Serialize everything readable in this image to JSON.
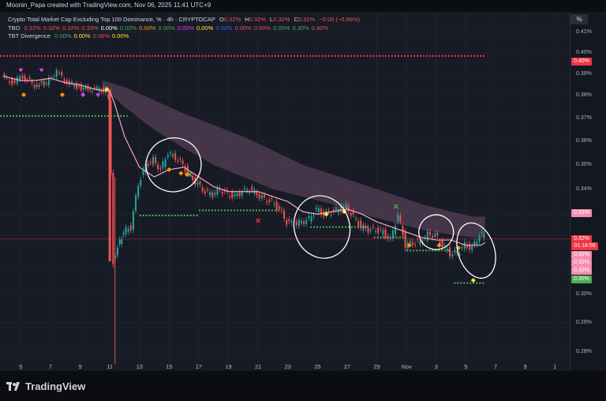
{
  "header": {
    "credit": "Moonin_Papa created with TradingView.com, Nov 06, 2025 11:41 UTC+9",
    "unit_button": "%"
  },
  "legend": {
    "symbol": {
      "title": "Crypto Total Market Cap Excluding Top 100 Dominance, % · 4h · CRYPTOCAP",
      "o_label": "O",
      "o": "0.32%",
      "h_label": "H",
      "h": "0.32%",
      "l_label": "L",
      "l": "0.32%",
      "c_label": "C",
      "c": "0.32%",
      "change": "−0.00 (−0.66%)"
    },
    "tbo": {
      "name": "TBO",
      "values": [
        "0.32%",
        "0.32%",
        "0.32%",
        "0.33%",
        "0.00%",
        "0.00%",
        "0.00%",
        "0.00%",
        "0.00%",
        "0.00%",
        "0.00%",
        "0.00%",
        "0.00%",
        "0.00%",
        "0.30%",
        "0.40%"
      ],
      "colors": [
        "#ef5350",
        "#ef5350",
        "#ef5350",
        "#ef5350",
        "#ffffff",
        "#4caf50",
        "#ff9800",
        "#4caf50",
        "#e040fb",
        "#ffeb3b",
        "#2962ff",
        "#ef5350",
        "#ef5350",
        "#4caf50",
        "#4caf50",
        "#ef5350"
      ]
    },
    "tbt": {
      "name": "TBT Divergence",
      "values": [
        "0.00%",
        "0.00%",
        "0.00%",
        "0.00%"
      ],
      "colors": [
        "#4caf50",
        "#ffeb3b",
        "#ef5350",
        "#ffeb3b"
      ]
    }
  },
  "price_tags": [
    {
      "text": "0.40%",
      "bg": "#f23645"
    },
    {
      "text": "0.33%",
      "bg": "#f48fb1"
    },
    {
      "text": "0.32%",
      "bg": "#f23645"
    },
    {
      "text": "01:18:58",
      "bg": "#f23645"
    },
    {
      "text": "0.32%",
      "bg": "#f48fb1"
    },
    {
      "text": "0.32%",
      "bg": "#f48fb1"
    },
    {
      "text": "0.32%",
      "bg": "#f48fb1"
    },
    {
      "text": "0.30%",
      "bg": "#4caf50"
    }
  ],
  "footer": {
    "logo_text": "TradingView"
  },
  "chart_data": {
    "type": "candlestick",
    "x_tick_labels": [
      "5",
      "7",
      "9",
      "11",
      "13",
      "15",
      "17",
      "19",
      "21",
      "23",
      "25",
      "27",
      "29",
      "Nov",
      "3",
      "5",
      "7",
      "9",
      "1"
    ],
    "y_tick_labels": [
      "0.41%",
      "0.40%",
      "0.39%",
      "0.38%",
      "0.37%",
      "0.36%",
      "0.35%",
      "0.34%",
      "0.33%",
      "0.32%",
      "0.31%",
      "0.30%",
      "0.29%",
      "0.28%"
    ],
    "y_ticks": [
      0.41,
      0.4,
      0.39,
      0.38,
      0.37,
      0.36,
      0.35,
      0.34,
      0.33,
      0.32,
      0.31,
      0.3,
      0.29,
      0.28
    ],
    "ylim": [
      0.274,
      0.42
    ],
    "x_days": [
      5,
      7,
      9,
      11,
      13,
      15,
      17,
      19,
      21,
      23,
      25,
      27,
      29,
      31,
      33,
      35,
      37,
      39,
      41
    ],
    "xlim": [
      3.6,
      42.0
    ],
    "log_scale": true,
    "close_series": {
      "x": [
        3.8,
        4.5,
        5.2,
        6.0,
        6.8,
        7.5,
        8.2,
        9.0,
        9.6,
        10.2,
        10.8,
        11.0,
        11.15,
        11.3,
        11.6,
        12.0,
        12.5,
        13.0,
        13.5,
        14.0,
        14.5,
        15.0,
        15.5,
        16.0,
        16.5,
        17.0,
        17.5,
        18.0,
        18.5,
        19.0,
        19.5,
        20.0,
        20.5,
        21.0,
        21.5,
        22.0,
        22.5,
        23.0,
        23.5,
        24.0,
        24.5,
        25.0,
        25.5,
        26.0,
        26.5,
        27.0,
        27.5,
        28.0,
        28.5,
        29.0,
        29.5,
        30.0,
        30.5,
        31.0,
        31.5,
        32.0,
        32.5,
        33.0,
        33.5,
        34.0,
        34.5,
        35.0,
        35.5,
        36.0,
        36.3
      ],
      "y": [
        0.389,
        0.386,
        0.389,
        0.385,
        0.386,
        0.391,
        0.386,
        0.384,
        0.383,
        0.383,
        0.382,
        0.378,
        0.346,
        0.312,
        0.318,
        0.323,
        0.325,
        0.342,
        0.35,
        0.352,
        0.348,
        0.355,
        0.353,
        0.35,
        0.345,
        0.342,
        0.339,
        0.338,
        0.34,
        0.338,
        0.337,
        0.339,
        0.34,
        0.338,
        0.336,
        0.335,
        0.332,
        0.327,
        0.326,
        0.327,
        0.328,
        0.332,
        0.33,
        0.331,
        0.332,
        0.333,
        0.329,
        0.325,
        0.324,
        0.324,
        0.323,
        0.32,
        0.33,
        0.318,
        0.319,
        0.319,
        0.322,
        0.322,
        0.318,
        0.315,
        0.315,
        0.318,
        0.317,
        0.322,
        0.322
      ]
    },
    "spike_low": {
      "x": 11.35,
      "y": 0.276
    },
    "ema_line": {
      "x": [
        3.8,
        5,
        6,
        7,
        8,
        9,
        10,
        11,
        11.3,
        12,
        13,
        14,
        15,
        16,
        17,
        18,
        19,
        20,
        21,
        22,
        23,
        24,
        25,
        26,
        27,
        28,
        29,
        30,
        31,
        32,
        33,
        34,
        35,
        36,
        36.3
      ],
      "y": [
        0.389,
        0.387,
        0.387,
        0.388,
        0.386,
        0.385,
        0.383,
        0.382,
        0.377,
        0.362,
        0.349,
        0.345,
        0.348,
        0.349,
        0.345,
        0.341,
        0.339,
        0.339,
        0.339,
        0.337,
        0.335,
        0.331,
        0.33,
        0.331,
        0.332,
        0.33,
        0.327,
        0.325,
        0.323,
        0.321,
        0.32,
        0.32,
        0.318,
        0.318,
        0.319
      ]
    },
    "cloud": {
      "x": [
        10.5,
        12,
        14,
        16,
        18,
        20,
        22,
        24,
        26,
        28,
        30,
        32,
        34,
        35.5,
        36.3
      ],
      "upper": [
        0.387,
        0.384,
        0.378,
        0.372,
        0.367,
        0.362,
        0.356,
        0.35,
        0.346,
        0.342,
        0.338,
        0.334,
        0.331,
        0.329,
        0.329
      ],
      "lower": [
        0.384,
        0.375,
        0.365,
        0.357,
        0.35,
        0.345,
        0.34,
        0.337,
        0.334,
        0.33,
        0.327,
        0.324,
        0.322,
        0.321,
        0.321
      ]
    },
    "levels": [
      {
        "y": 0.3985,
        "x0": 3.6,
        "x1": 36.3,
        "color": "#f23645"
      },
      {
        "y": 0.371,
        "x0": 3.6,
        "x1": 12.2,
        "color": "#4caf50"
      },
      {
        "y": 0.3295,
        "x0": 13.0,
        "x1": 17.0,
        "color": "#4caf50"
      },
      {
        "y": 0.3315,
        "x0": 17.0,
        "x1": 22.5,
        "color": "#4caf50"
      },
      {
        "y": 0.325,
        "x0": 24.5,
        "x1": 28.5,
        "color": "#4caf50"
      },
      {
        "y": 0.321,
        "x0": 28.8,
        "x1": 31.0,
        "color": "#4caf50"
      },
      {
        "y": 0.316,
        "x0": 31.0,
        "x1": 34.0,
        "color": "#4caf50"
      },
      {
        "y": 0.304,
        "x0": 34.2,
        "x1": 36.3,
        "color": "#4caf50"
      }
    ],
    "current_price_line": 0.3205,
    "markers": [
      {
        "x": 5.0,
        "y": 0.3915,
        "color": "#e040fb",
        "shape": "tri"
      },
      {
        "x": 6.4,
        "y": 0.3915,
        "color": "#e040fb",
        "shape": "tri"
      },
      {
        "x": 5.2,
        "y": 0.3805,
        "color": "#ff9800",
        "shape": "dia"
      },
      {
        "x": 7.8,
        "y": 0.3805,
        "color": "#ff9800",
        "shape": "dia"
      },
      {
        "x": 9.2,
        "y": 0.3805,
        "color": "#e040fb",
        "shape": "dia"
      },
      {
        "x": 10.2,
        "y": 0.38,
        "color": "#e040fb",
        "shape": "tri"
      },
      {
        "x": 10.8,
        "y": 0.383,
        "color": "#ffeb3b",
        "shape": "dia"
      },
      {
        "x": 15.0,
        "y": 0.348,
        "color": "#ff9800",
        "shape": "dia"
      },
      {
        "x": 15.8,
        "y": 0.3465,
        "color": "#ff9800",
        "shape": "dia"
      },
      {
        "x": 16.2,
        "y": 0.346,
        "color": "#ff9800",
        "shape": "dia"
      },
      {
        "x": 16.4,
        "y": 0.346,
        "color": "#4caf50",
        "shape": "x"
      },
      {
        "x": 21.0,
        "y": 0.3275,
        "color": "#f23645",
        "shape": "x"
      },
      {
        "x": 25.6,
        "y": 0.33,
        "color": "#ffeb3b",
        "shape": "dia"
      },
      {
        "x": 26.8,
        "y": 0.331,
        "color": "#ffeb3b",
        "shape": "dia"
      },
      {
        "x": 30.3,
        "y": 0.333,
        "color": "#4caf50",
        "shape": "x"
      },
      {
        "x": 31.2,
        "y": 0.318,
        "color": "#ff9800",
        "shape": "dia"
      },
      {
        "x": 33.2,
        "y": 0.318,
        "color": "#ff9800",
        "shape": "dia"
      },
      {
        "x": 34.5,
        "y": 0.317,
        "color": "#ff9800",
        "shape": "dia"
      },
      {
        "x": 35.5,
        "y": 0.305,
        "color": "#ffeb3b",
        "shape": "dia"
      }
    ],
    "annotations": [
      {
        "type": "hand-drawn-circle",
        "x": 15.3,
        "y": 0.35
      },
      {
        "type": "hand-drawn-circle",
        "x": 25.3,
        "y": 0.325
      },
      {
        "type": "hand-drawn-circle",
        "x": 33.0,
        "y": 0.323
      },
      {
        "type": "hand-drawn-circle",
        "x": 35.7,
        "y": 0.316
      }
    ]
  }
}
